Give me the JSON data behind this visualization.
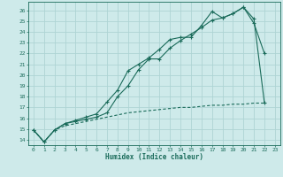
{
  "xlabel": "Humidex (Indice chaleur)",
  "background_color": "#ceeaea",
  "grid_color": "#aed4d4",
  "line_color": "#1a6b5a",
  "spine_color": "#1a6b5a",
  "xlim": [
    -0.5,
    23.5
  ],
  "ylim": [
    13.5,
    26.8
  ],
  "xticks": [
    0,
    1,
    2,
    3,
    4,
    5,
    6,
    7,
    8,
    9,
    10,
    11,
    12,
    13,
    14,
    15,
    16,
    17,
    18,
    19,
    20,
    21,
    22,
    23
  ],
  "yticks": [
    14,
    15,
    16,
    17,
    18,
    19,
    20,
    21,
    22,
    23,
    24,
    25,
    26
  ],
  "x_values": [
    0,
    1,
    2,
    3,
    4,
    5,
    6,
    7,
    8,
    9,
    10,
    11,
    12,
    13,
    14,
    15,
    16,
    17,
    18,
    19,
    20,
    21,
    22,
    23
  ],
  "line1_y": [
    14.9,
    13.8,
    14.9,
    15.5,
    15.8,
    16.1,
    16.4,
    17.5,
    18.6,
    20.4,
    21.0,
    21.6,
    22.4,
    23.3,
    23.5,
    23.5,
    24.6,
    25.9,
    25.3,
    25.7,
    26.3,
    24.8,
    22.0,
    null
  ],
  "line2_y": [
    14.9,
    13.8,
    14.9,
    15.5,
    15.7,
    15.9,
    16.1,
    16.5,
    18.0,
    19.0,
    20.5,
    21.5,
    21.5,
    22.5,
    23.2,
    23.8,
    24.4,
    25.1,
    25.3,
    25.7,
    26.3,
    25.2,
    17.4,
    null
  ],
  "line3_y": [
    14.9,
    13.8,
    14.9,
    15.3,
    15.5,
    15.7,
    15.9,
    16.1,
    16.3,
    16.5,
    16.6,
    16.7,
    16.8,
    16.9,
    17.0,
    17.0,
    17.1,
    17.2,
    17.2,
    17.3,
    17.3,
    17.4,
    17.4,
    null
  ]
}
